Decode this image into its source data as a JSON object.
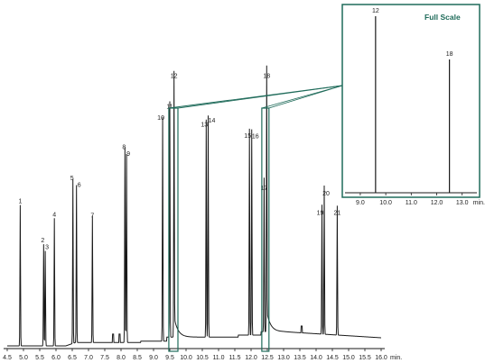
{
  "chart_data": [
    {
      "type": "line",
      "title": "",
      "xlabel": "",
      "ylabel": "",
      "x_unit_label": "min.",
      "xlim": [
        4.5,
        16.0
      ],
      "xticks": [
        "4.5",
        "5.0",
        "5.5",
        "6.0",
        "6.5",
        "7.0",
        "7.5",
        "8.0",
        "8.5",
        "9.0",
        "9.5",
        "10.0",
        "10.5",
        "11.0",
        "11.5",
        "12.0",
        "12.5",
        "13.0",
        "13.5",
        "14.0",
        "14.5",
        "15.0",
        "15.5",
        "16.0"
      ],
      "grid": false,
      "legend": "none",
      "peaks": [
        {
          "label": "1",
          "rt": 4.9,
          "height": 0.417
        },
        {
          "label": "2",
          "rt": 5.62,
          "height": 0.301
        },
        {
          "label": "3",
          "rt": 5.67,
          "height": 0.281
        },
        {
          "label": "4",
          "rt": 5.95,
          "height": 0.378
        },
        {
          "label": "5",
          "rt": 6.52,
          "height": 0.486
        },
        {
          "label": "6",
          "rt": 6.63,
          "height": 0.466
        },
        {
          "label": "7",
          "rt": 7.12,
          "height": 0.375
        },
        {
          "label": "8",
          "rt": 8.12,
          "height": 0.578
        },
        {
          "label": "9",
          "rt": 8.17,
          "height": 0.558
        },
        {
          "label": "10",
          "rt": 9.28,
          "height": 0.664
        },
        {
          "label": "11",
          "rt": 9.5,
          "height": 0.698
        },
        {
          "label": "12",
          "rt": 9.63,
          "height": 0.788
        },
        {
          "label": "13",
          "rt": 10.62,
          "height": 0.644
        },
        {
          "label": "14",
          "rt": 10.68,
          "height": 0.656
        },
        {
          "label": "15",
          "rt": 11.95,
          "height": 0.611
        },
        {
          "label": "16",
          "rt": 12.02,
          "height": 0.609
        },
        {
          "label": "17",
          "rt": 12.4,
          "height": 0.456
        },
        {
          "label": "18",
          "rt": 12.48,
          "height": 0.788
        },
        {
          "label": "19",
          "rt": 14.18,
          "height": 0.383
        },
        {
          "label": "20",
          "rt": 14.25,
          "height": 0.44
        },
        {
          "label": "21",
          "rt": 14.65,
          "height": 0.383
        }
      ],
      "zoom_windows": [
        [
          9.47,
          9.75
        ],
        [
          12.33,
          12.55
        ]
      ]
    },
    {
      "type": "line",
      "title": "Full Scale",
      "x_unit_label": "min.",
      "xlim": [
        8.4,
        13.6
      ],
      "xticks": [
        "9.0",
        "10.0",
        "11.0",
        "12.0",
        "13.0"
      ],
      "peaks": [
        {
          "label": "12",
          "rt": 9.6,
          "height": 1.0
        },
        {
          "label": "18",
          "rt": 12.5,
          "height": 0.755
        }
      ]
    }
  ],
  "colors": {
    "trace": "#1a1a1a",
    "highlight": "#1f6b5a"
  }
}
